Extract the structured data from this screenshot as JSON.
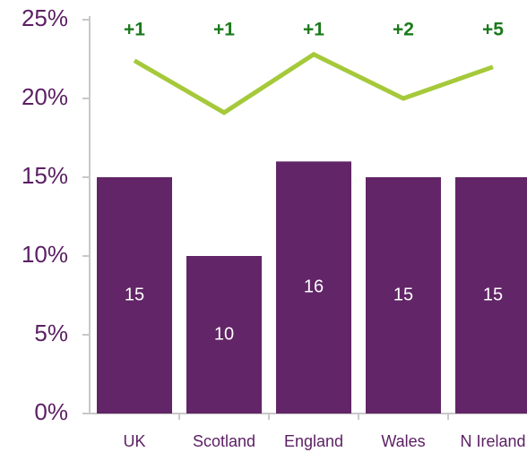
{
  "chart_data": {
    "type": "bar",
    "categories": [
      "UK",
      "Scotland",
      "England",
      "Wales",
      "N Ireland"
    ],
    "series": [
      {
        "type": "bar",
        "color": "#622567",
        "values": [
          15,
          10,
          16,
          15,
          15
        ]
      },
      {
        "type": "line",
        "color": "#a5c93a",
        "values": [
          22.4,
          19.1,
          22.8,
          20,
          22
        ]
      }
    ],
    "annotations": [
      "+1",
      "+1",
      "+1",
      "+2",
      "+5"
    ],
    "ylim": [
      0,
      25
    ],
    "yticks": [
      {
        "value": 0,
        "label": "0%"
      },
      {
        "value": 5,
        "label": "5%"
      },
      {
        "value": 10,
        "label": "10%"
      },
      {
        "value": 15,
        "label": "15%"
      },
      {
        "value": 20,
        "label": "20%"
      },
      {
        "value": 25,
        "label": "25%"
      }
    ]
  }
}
